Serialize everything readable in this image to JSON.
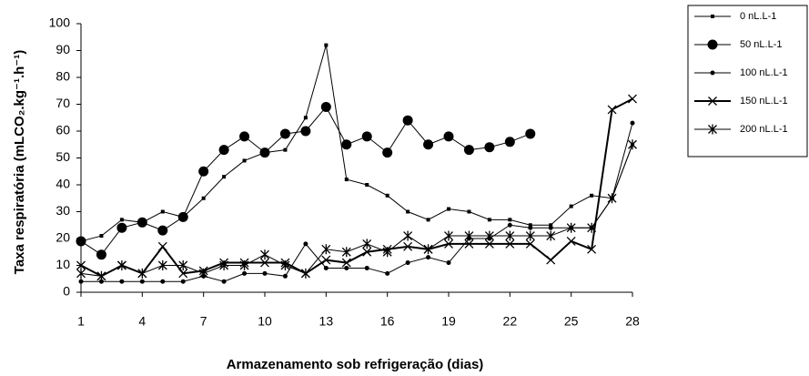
{
  "chart_data": {
    "type": "line",
    "x_label": "Armazenamento sob refrigeração (dias)",
    "y_label": "Taxa respiratória (mLCO₂.kg⁻¹.h⁻¹)",
    "x": [
      1,
      2,
      3,
      4,
      5,
      6,
      7,
      8,
      9,
      10,
      11,
      12,
      13,
      14,
      15,
      16,
      17,
      18,
      19,
      20,
      21,
      22,
      23,
      24,
      25,
      26,
      27,
      28
    ],
    "xlim": [
      1,
      28
    ],
    "xticks": [
      1,
      4,
      7,
      10,
      13,
      16,
      19,
      22,
      25,
      28
    ],
    "ylim": [
      0,
      100
    ],
    "yticks": [
      0,
      10,
      20,
      30,
      40,
      50,
      60,
      70,
      80,
      90,
      100
    ],
    "grid": false,
    "legend": "top-right",
    "series": [
      {
        "name": "0 nL.L-1",
        "color": "#000000",
        "marker": "square",
        "width": 1,
        "values": [
          19,
          21,
          27,
          26,
          30,
          28,
          35,
          43,
          49,
          52,
          53,
          65,
          92,
          42,
          40,
          36,
          30,
          27,
          31,
          30,
          27,
          27,
          25,
          25,
          32,
          36,
          35,
          55
        ]
      },
      {
        "name": "50 nL.L-1",
        "color": "#000000",
        "marker": "circle",
        "width": 1,
        "values": [
          19,
          14,
          24,
          26,
          23,
          28,
          45,
          53,
          58,
          52,
          59,
          60,
          69,
          55,
          58,
          52,
          64,
          55,
          58,
          53,
          54,
          56,
          59,
          null,
          null,
          null,
          null,
          null
        ]
      },
      {
        "name": "100 nL.L-1",
        "color": "#000000",
        "marker": "dot",
        "width": 1,
        "values": [
          4,
          4,
          4,
          4,
          4,
          4,
          6,
          4,
          7,
          7,
          6,
          18,
          9,
          9,
          9,
          7,
          11,
          13,
          11,
          20,
          20,
          25,
          24,
          24,
          24,
          24,
          35,
          63
        ]
      },
      {
        "name": "150 nL.L-1",
        "color": "#000000",
        "marker": "x",
        "width": 2,
        "values": [
          10,
          6,
          10,
          7,
          17,
          7,
          8,
          11,
          11,
          11,
          11,
          7,
          12,
          11,
          15,
          16,
          17,
          16,
          18,
          18,
          18,
          18,
          18,
          12,
          19,
          16,
          68,
          72
        ]
      },
      {
        "name": "200 nL.L-1",
        "color": "#000000",
        "marker": "star",
        "width": 1,
        "values": [
          7,
          6,
          10,
          7,
          10,
          10,
          7,
          10,
          10,
          14,
          10,
          7,
          16,
          15,
          18,
          15,
          21,
          16,
          21,
          21,
          21,
          21,
          21,
          21,
          24,
          24,
          35,
          55
        ]
      }
    ]
  }
}
